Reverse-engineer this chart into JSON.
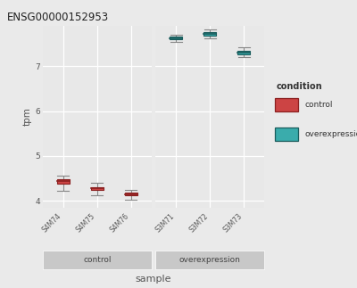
{
  "title": "ENSG00000152953",
  "ylabel": "tpm",
  "xlabel": "sample",
  "ylim": [
    3.85,
    7.9
  ],
  "yticks": [
    4,
    5,
    6,
    7
  ],
  "bg_color": "#EAEAEA",
  "panel_bg": "#E8E8E8",
  "grid_color": "#FFFFFF",
  "facet_label_bg": "#C8C8C8",
  "control_samples": [
    "S4M74",
    "S4M75",
    "S4M76"
  ],
  "overexpression_samples": [
    "S3M71",
    "S3M72",
    "S3M73"
  ],
  "control_color": "#8B2020",
  "control_fill": "#CC4444",
  "overexpression_color": "#1A5C5C",
  "overexpression_fill": "#3AACAC",
  "boxes": {
    "S4M74": {
      "q1": 4.38,
      "median": 4.43,
      "q3": 4.48,
      "whislo": 4.22,
      "whishi": 4.55
    },
    "S4M75": {
      "q1": 4.24,
      "median": 4.27,
      "q3": 4.3,
      "whislo": 4.12,
      "whishi": 4.4
    },
    "S4M76": {
      "q1": 4.11,
      "median": 4.14,
      "q3": 4.17,
      "whislo": 4.02,
      "whishi": 4.24
    },
    "S3M71": {
      "q1": 7.6,
      "median": 7.63,
      "q3": 7.66,
      "whislo": 7.55,
      "whishi": 7.7
    },
    "S3M72": {
      "q1": 7.68,
      "median": 7.72,
      "q3": 7.76,
      "whislo": 7.63,
      "whishi": 7.82
    },
    "S3M73": {
      "q1": 7.26,
      "median": 7.3,
      "q3": 7.34,
      "whislo": 7.2,
      "whishi": 7.43
    }
  }
}
